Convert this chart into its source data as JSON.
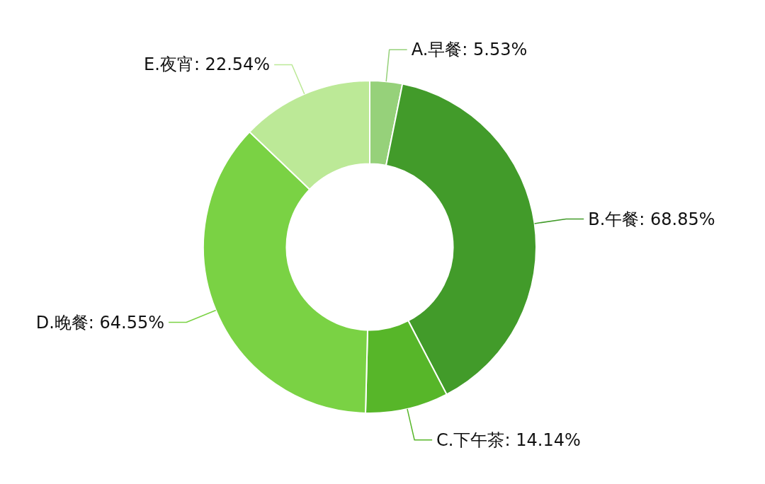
{
  "chart_data": {
    "type": "donut",
    "categories": [
      "A.早餐",
      "B.午餐",
      "C.下午茶",
      "D.晚餐",
      "E.夜宵"
    ],
    "values": [
      5.53,
      68.85,
      14.14,
      64.55,
      22.54
    ],
    "colors": [
      "#96d17a",
      "#429b2a",
      "#57b629",
      "#7ad244",
      "#bce997"
    ],
    "value_labels": [
      ": 5.53%",
      ": 68.85%",
      ": 14.14%",
      ": 64.55%",
      ": 22.54%"
    ],
    "legend": false
  }
}
